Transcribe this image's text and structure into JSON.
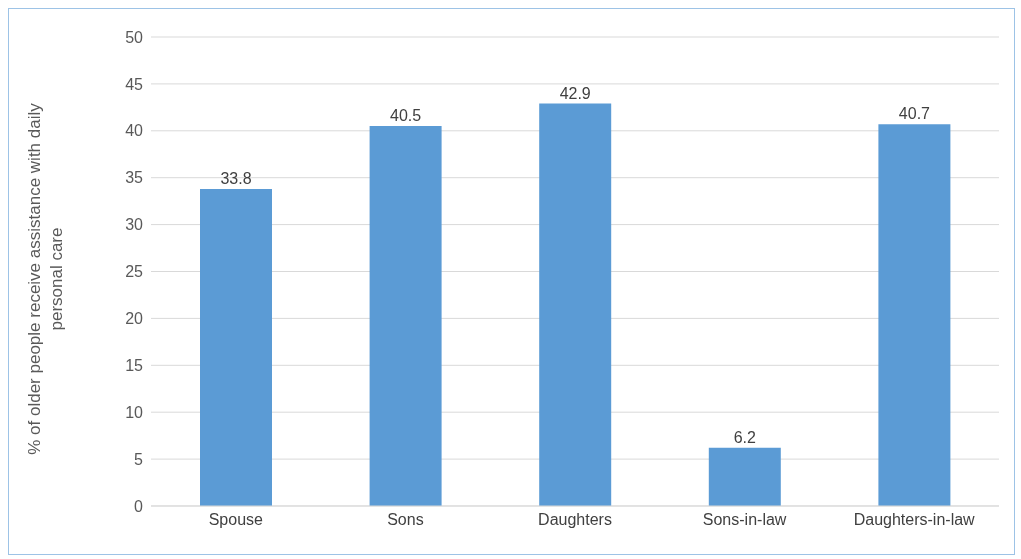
{
  "chart_data": {
    "type": "bar",
    "ylabel": "% of older people receive assistance with daily personal care",
    "categories": [
      "Spouse",
      "Sons",
      "Daughters",
      "Sons-in-law",
      "Daughters-in-law"
    ],
    "values": [
      33.8,
      40.5,
      42.9,
      6.2,
      40.7
    ],
    "color": "#5b9bd5",
    "ylim": [
      0,
      50
    ],
    "yticks": [
      0,
      5,
      10,
      15,
      20,
      25,
      30,
      35,
      40,
      45,
      50
    ],
    "grid": "y",
    "data_labels": true
  }
}
